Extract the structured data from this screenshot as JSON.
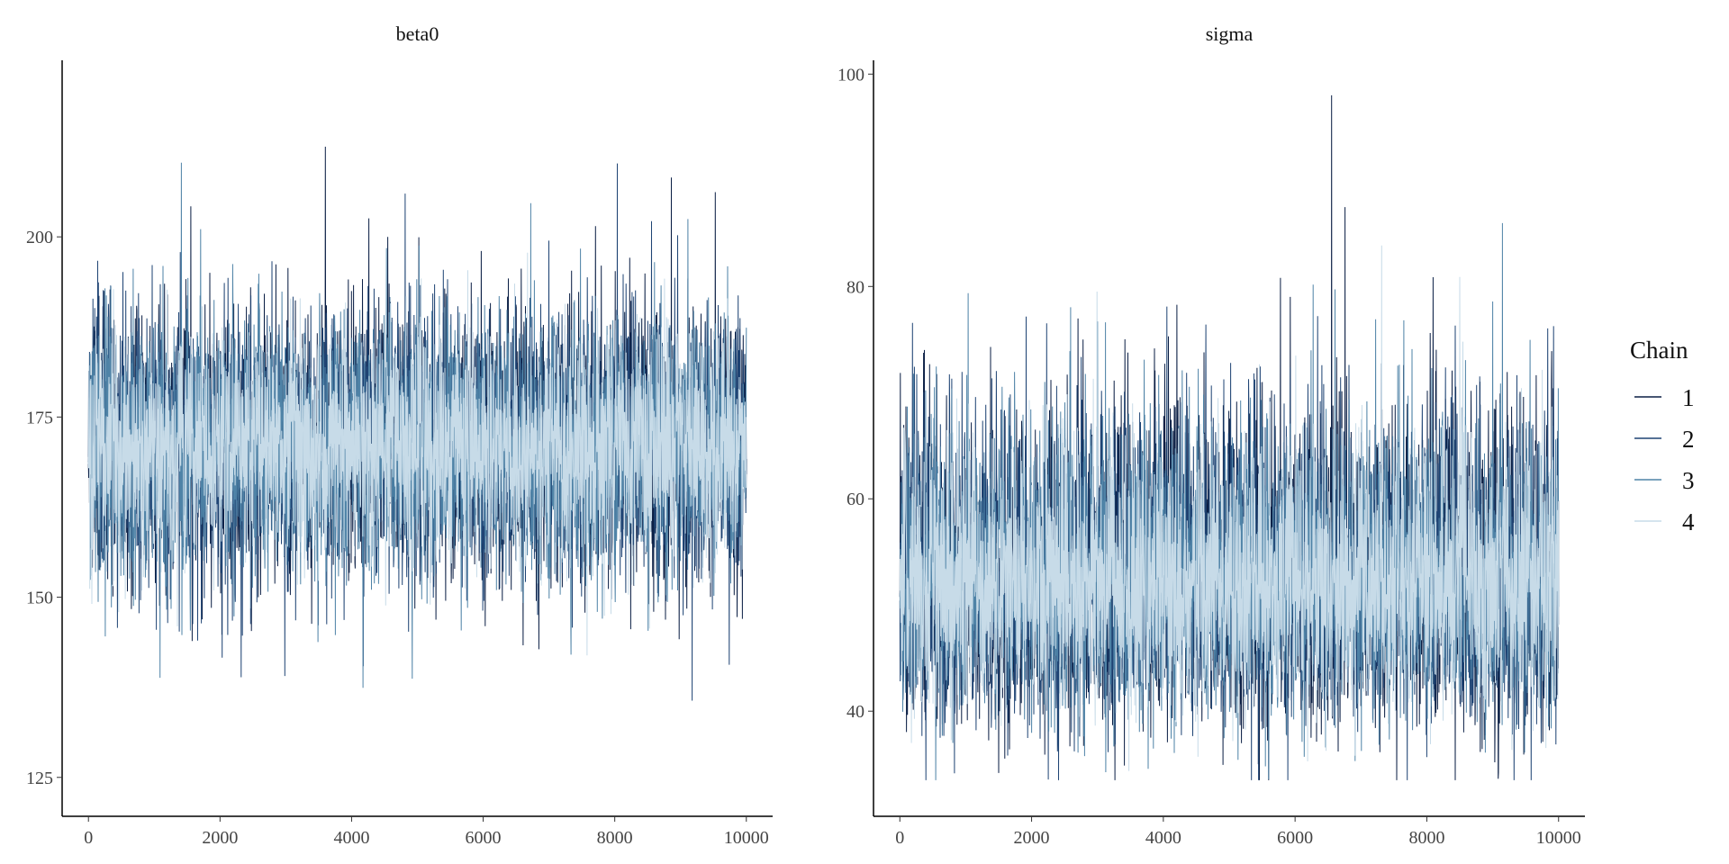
{
  "chart_data": [
    {
      "type": "line",
      "title": "beta0",
      "xlabel": "",
      "ylabel": "",
      "xlim": [
        -400,
        10400
      ],
      "ylim": [
        119.6,
        224.5
      ],
      "x_ticks": [
        0,
        2000,
        4000,
        6000,
        8000,
        10000
      ],
      "y_ticks": [
        125,
        150,
        175,
        200
      ],
      "iterations": 10000,
      "summary": {
        "center": 171,
        "spread_sd": 9,
        "min": 124.5,
        "max": 220
      },
      "series": [
        {
          "name": "1",
          "color": "#0b1f45",
          "seed": 11
        },
        {
          "name": "2",
          "color": "#1f4474",
          "seed": 22
        },
        {
          "name": "3",
          "color": "#4f83a7",
          "seed": 33
        },
        {
          "name": "4",
          "color": "#c7dbe8",
          "seed": 44
        }
      ]
    },
    {
      "type": "line",
      "title": "sigma",
      "xlabel": "",
      "ylabel": "",
      "xlim": [
        -400,
        10400
      ],
      "ylim": [
        30.1,
        101.3
      ],
      "x_ticks": [
        0,
        2000,
        4000,
        6000,
        8000,
        10000
      ],
      "y_ticks": [
        40,
        60,
        80,
        100
      ],
      "iterations": 10000,
      "summary": {
        "center": 52,
        "spread_sd": 7,
        "min": 33.5,
        "max": 98
      },
      "series": [
        {
          "name": "1",
          "color": "#0b1f45",
          "seed": 55
        },
        {
          "name": "2",
          "color": "#1f4474",
          "seed": 66
        },
        {
          "name": "3",
          "color": "#4f83a7",
          "seed": 77
        },
        {
          "name": "4",
          "color": "#c7dbe8",
          "seed": 88
        }
      ]
    }
  ],
  "legend": {
    "title": "Chain",
    "position": "right",
    "items": [
      "1",
      "2",
      "3",
      "4"
    ]
  }
}
